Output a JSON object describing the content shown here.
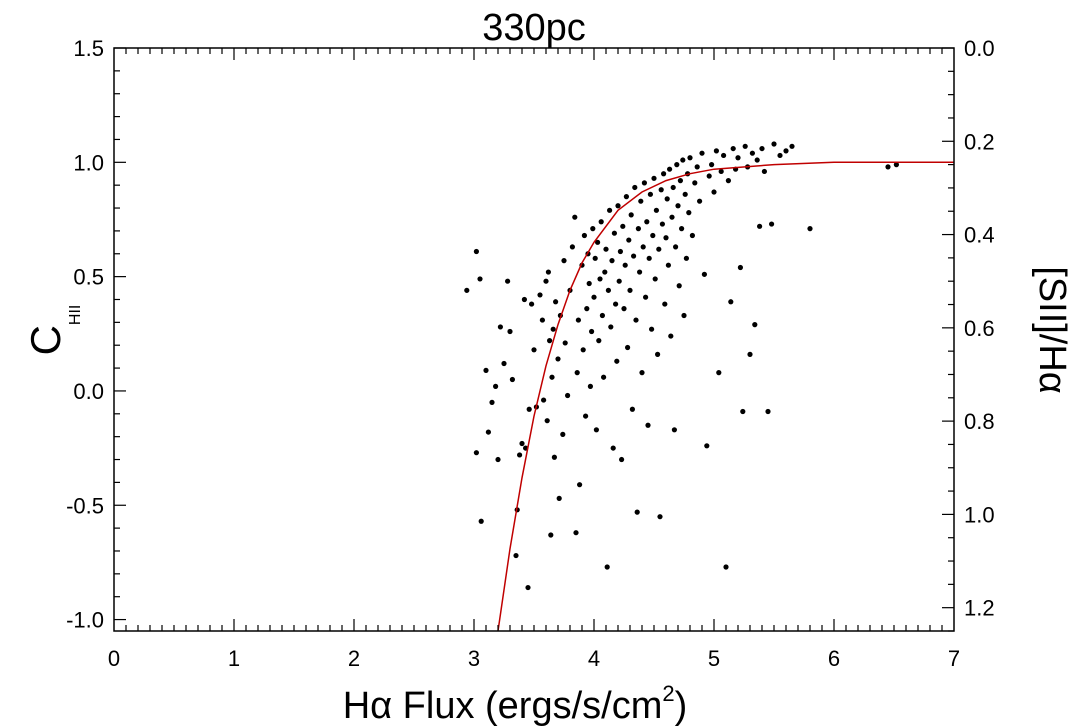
{
  "chart_data": {
    "type": "scatter",
    "title": "330pc",
    "xlabel": {
      "main": "Hα Flux (ergs/s/cm",
      "sup": "2",
      "close": ")"
    },
    "ylabel": {
      "main": "C",
      "sub": "HII"
    },
    "ylabel_right": "[SII]/Hα",
    "xlim": [
      0,
      7
    ],
    "ylim": [
      -1.05,
      1.5
    ],
    "ylim_right_top": 0.0,
    "ylim_right_bottom": 1.25,
    "x_ticks": [
      "0",
      "1",
      "2",
      "3",
      "4",
      "5",
      "6",
      "7"
    ],
    "y_ticks": [
      "1.5",
      "1.0",
      "0.5",
      "0.0",
      "-0.5",
      "-1.0"
    ],
    "y_ticks_right": [
      "0.0",
      "0.2",
      "0.4",
      "0.6",
      "0.8",
      "1.0",
      "1.2"
    ],
    "point_color": "#000000",
    "fit_color": "#c00000",
    "fit_curve": [
      [
        3.2,
        -1.05
      ],
      [
        3.3,
        -0.69
      ],
      [
        3.4,
        -0.38
      ],
      [
        3.5,
        -0.11
      ],
      [
        3.6,
        0.11
      ],
      [
        3.7,
        0.29
      ],
      [
        3.8,
        0.44
      ],
      [
        3.9,
        0.56
      ],
      [
        4.0,
        0.65
      ],
      [
        4.2,
        0.79
      ],
      [
        4.4,
        0.87
      ],
      [
        4.6,
        0.92
      ],
      [
        4.8,
        0.95
      ],
      [
        5.0,
        0.97
      ],
      [
        5.5,
        0.99
      ],
      [
        6.0,
        1.0
      ],
      [
        6.5,
        1.0
      ],
      [
        7.0,
        1.0
      ]
    ],
    "points": [
      [
        2.94,
        0.44
      ],
      [
        3.02,
        0.61
      ],
      [
        3.05,
        0.49
      ],
      [
        3.02,
        -0.27
      ],
      [
        3.06,
        -0.57
      ],
      [
        3.1,
        0.09
      ],
      [
        3.12,
        -0.18
      ],
      [
        3.15,
        -0.05
      ],
      [
        3.18,
        0.02
      ],
      [
        3.2,
        -0.3
      ],
      [
        3.22,
        0.28
      ],
      [
        3.25,
        0.12
      ],
      [
        3.28,
        0.48
      ],
      [
        3.3,
        0.26
      ],
      [
        3.32,
        0.05
      ],
      [
        3.35,
        -0.72
      ],
      [
        3.36,
        -0.52
      ],
      [
        3.38,
        -0.28
      ],
      [
        3.4,
        -0.23
      ],
      [
        3.42,
        0.4
      ],
      [
        3.43,
        -0.25
      ],
      [
        3.45,
        -0.86
      ],
      [
        3.46,
        -0.08
      ],
      [
        3.48,
        0.38
      ],
      [
        3.5,
        0.18
      ],
      [
        3.52,
        -0.07
      ],
      [
        3.55,
        0.42
      ],
      [
        3.57,
        0.31
      ],
      [
        3.58,
        -0.04
      ],
      [
        3.6,
        0.48
      ],
      [
        3.61,
        -0.13
      ],
      [
        3.62,
        0.52
      ],
      [
        3.63,
        0.22
      ],
      [
        3.64,
        -0.63
      ],
      [
        3.65,
        0.06
      ],
      [
        3.66,
        0.27
      ],
      [
        3.67,
        -0.29
      ],
      [
        3.68,
        0.39
      ],
      [
        3.7,
        0.14
      ],
      [
        3.71,
        -0.47
      ],
      [
        3.72,
        0.33
      ],
      [
        3.74,
        -0.19
      ],
      [
        3.75,
        0.57
      ],
      [
        3.76,
        0.21
      ],
      [
        3.78,
        -0.02
      ],
      [
        3.8,
        0.44
      ],
      [
        3.82,
        0.63
      ],
      [
        3.84,
        0.76
      ],
      [
        3.85,
        -0.62
      ],
      [
        3.86,
        0.08
      ],
      [
        3.87,
        0.31
      ],
      [
        3.88,
        -0.41
      ],
      [
        3.9,
        0.55
      ],
      [
        3.91,
        0.18
      ],
      [
        3.92,
        0.68
      ],
      [
        3.93,
        -0.11
      ],
      [
        3.94,
        0.36
      ],
      [
        3.95,
        0.6
      ],
      [
        3.96,
        0.47
      ],
      [
        3.97,
        0.02
      ],
      [
        3.98,
        0.26
      ],
      [
        3.99,
        0.71
      ],
      [
        4.0,
        0.41
      ],
      [
        4.01,
        0.58
      ],
      [
        4.02,
        -0.17
      ],
      [
        4.03,
        0.65
      ],
      [
        4.04,
        0.22
      ],
      [
        4.05,
        0.49
      ],
      [
        4.06,
        0.74
      ],
      [
        4.07,
        0.33
      ],
      [
        4.08,
        0.06
      ],
      [
        4.09,
        0.52
      ],
      [
        4.1,
        0.62
      ],
      [
        4.11,
        -0.77
      ],
      [
        4.12,
        0.44
      ],
      [
        4.13,
        0.79
      ],
      [
        4.14,
        0.28
      ],
      [
        4.15,
        0.57
      ],
      [
        4.16,
        -0.25
      ],
      [
        4.17,
        0.69
      ],
      [
        4.18,
        0.38
      ],
      [
        4.19,
        0.13
      ],
      [
        4.2,
        0.81
      ],
      [
        4.21,
        0.48
      ],
      [
        4.22,
        0.61
      ],
      [
        4.23,
        -0.3
      ],
      [
        4.24,
        0.72
      ],
      [
        4.25,
        0.36
      ],
      [
        4.26,
        0.55
      ],
      [
        4.27,
        0.85
      ],
      [
        4.28,
        0.19
      ],
      [
        4.29,
        0.66
      ],
      [
        4.3,
        0.44
      ],
      [
        4.31,
        0.77
      ],
      [
        4.32,
        -0.08
      ],
      [
        4.33,
        0.59
      ],
      [
        4.34,
        0.89
      ],
      [
        4.35,
        0.31
      ],
      [
        4.36,
        -0.53
      ],
      [
        4.37,
        0.71
      ],
      [
        4.38,
        0.52
      ],
      [
        4.39,
        0.83
      ],
      [
        4.4,
        0.08
      ],
      [
        4.41,
        0.63
      ],
      [
        4.42,
        0.91
      ],
      [
        4.43,
        0.41
      ],
      [
        4.44,
        0.74
      ],
      [
        4.45,
        -0.15
      ],
      [
        4.46,
        0.58
      ],
      [
        4.47,
        0.86
      ],
      [
        4.48,
        0.27
      ],
      [
        4.49,
        0.68
      ],
      [
        4.5,
        0.93
      ],
      [
        4.51,
        0.49
      ],
      [
        4.52,
        0.79
      ],
      [
        4.53,
        0.16
      ],
      [
        4.54,
        0.62
      ],
      [
        4.55,
        -0.55
      ],
      [
        4.56,
        0.88
      ],
      [
        4.57,
        0.73
      ],
      [
        4.58,
        0.95
      ],
      [
        4.59,
        0.38
      ],
      [
        4.6,
        0.67
      ],
      [
        4.61,
        0.84
      ],
      [
        4.62,
        0.55
      ],
      [
        4.63,
        0.97
      ],
      [
        4.64,
        0.24
      ],
      [
        4.65,
        0.76
      ],
      [
        4.66,
        0.89
      ],
      [
        4.67,
        -0.17
      ],
      [
        4.68,
        0.63
      ],
      [
        4.69,
        0.99
      ],
      [
        4.7,
        0.81
      ],
      [
        4.71,
        0.46
      ],
      [
        4.72,
        0.92
      ],
      [
        4.73,
        0.71
      ],
      [
        4.74,
        1.01
      ],
      [
        4.75,
        0.33
      ],
      [
        4.76,
        0.86
      ],
      [
        4.77,
        0.58
      ],
      [
        4.78,
        0.95
      ],
      [
        4.79,
        0.78
      ],
      [
        4.8,
        1.02
      ],
      [
        4.82,
        0.68
      ],
      [
        4.84,
        0.91
      ],
      [
        4.86,
        0.98
      ],
      [
        4.88,
        0.83
      ],
      [
        4.9,
        1.04
      ],
      [
        4.92,
        0.51
      ],
      [
        4.94,
        -0.24
      ],
      [
        4.96,
        0.94
      ],
      [
        4.98,
        0.99
      ],
      [
        5.0,
        0.87
      ],
      [
        5.02,
        1.05
      ],
      [
        5.04,
        0.08
      ],
      [
        5.06,
        0.96
      ],
      [
        5.08,
        1.03
      ],
      [
        5.1,
        -0.77
      ],
      [
        5.12,
        0.92
      ],
      [
        5.14,
        0.39
      ],
      [
        5.16,
        1.06
      ],
      [
        5.18,
        0.97
      ],
      [
        5.2,
        1.02
      ],
      [
        5.22,
        0.54
      ],
      [
        5.24,
        -0.09
      ],
      [
        5.26,
        1.07
      ],
      [
        5.28,
        0.98
      ],
      [
        5.3,
        0.16
      ],
      [
        5.32,
        1.04
      ],
      [
        5.34,
        0.29
      ],
      [
        5.36,
        1.01
      ],
      [
        5.38,
        0.72
      ],
      [
        5.4,
        1.06
      ],
      [
        5.42,
        0.96
      ],
      [
        5.45,
        -0.09
      ],
      [
        5.48,
        0.73
      ],
      [
        5.5,
        1.08
      ],
      [
        5.55,
        1.03
      ],
      [
        5.6,
        1.05
      ],
      [
        5.65,
        1.07
      ],
      [
        5.8,
        0.71
      ],
      [
        6.45,
        0.98
      ],
      [
        6.52,
        0.99
      ]
    ]
  }
}
